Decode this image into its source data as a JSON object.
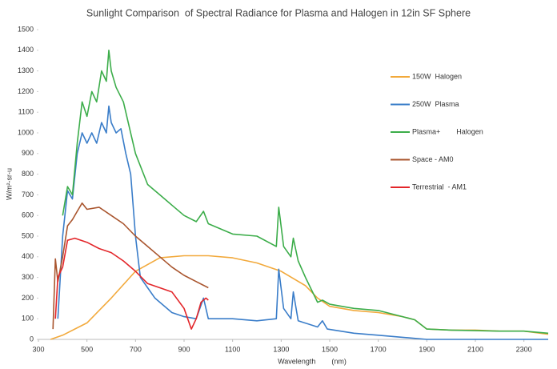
{
  "chart_data": {
    "type": "line",
    "title": "Sunlight Comparison  of Spectral Radiance for Plasma and Halogen in 12in SF Sphere",
    "xlabel": "Wavelength        (nm)",
    "ylabel": "W/m²-sr-u",
    "xlim": [
      300,
      2400
    ],
    "xticks": [
      300,
      500,
      700,
      900,
      1100,
      1300,
      1500,
      1700,
      1900,
      2100,
      2300
    ],
    "ylim": [
      0,
      1500
    ],
    "yticks": [
      0,
      100,
      200,
      300,
      400,
      500,
      600,
      700,
      800,
      900,
      1000,
      1100,
      1200,
      1300,
      1400,
      1500
    ],
    "grid": false,
    "series": [
      {
        "name": "150W  Halogen",
        "color": "#f2a93b",
        "x": [
          350,
          400,
          500,
          600,
          700,
          800,
          900,
          1000,
          1100,
          1200,
          1300,
          1400,
          1450,
          1500,
          1600,
          1700,
          1800,
          1850,
          1900,
          2000,
          2100,
          2200,
          2300,
          2400
        ],
        "values": [
          0,
          20,
          80,
          200,
          330,
          395,
          405,
          405,
          395,
          370,
          330,
          260,
          200,
          160,
          140,
          130,
          110,
          95,
          50,
          45,
          45,
          40,
          40,
          25
        ]
      },
      {
        "name": "250W  Plasma",
        "color": "#3a7dc9",
        "x": [
          380,
          400,
          420,
          440,
          460,
          480,
          500,
          520,
          540,
          560,
          580,
          590,
          600,
          620,
          640,
          660,
          680,
          700,
          720,
          750,
          780,
          800,
          850,
          900,
          950,
          980,
          1000,
          1100,
          1200,
          1280,
          1290,
          1310,
          1340,
          1350,
          1370,
          1450,
          1470,
          1490,
          1600,
          1700,
          1800,
          1900,
          2400
        ],
        "values": [
          100,
          500,
          720,
          680,
          900,
          1000,
          950,
          1000,
          950,
          1050,
          1000,
          1130,
          1050,
          1000,
          1020,
          900,
          800,
          500,
          300,
          250,
          200,
          180,
          130,
          110,
          100,
          200,
          100,
          100,
          90,
          100,
          340,
          150,
          100,
          230,
          90,
          60,
          90,
          50,
          30,
          20,
          10,
          0,
          0
        ]
      },
      {
        "name": "Plasma+        Halogen",
        "color": "#3cad4a",
        "x": [
          400,
          420,
          440,
          460,
          480,
          500,
          520,
          540,
          560,
          580,
          590,
          600,
          620,
          650,
          700,
          750,
          800,
          850,
          900,
          950,
          980,
          1000,
          1100,
          1200,
          1280,
          1290,
          1310,
          1340,
          1350,
          1370,
          1400,
          1450,
          1470,
          1500,
          1600,
          1700,
          1800,
          1850,
          1900,
          2000,
          2200,
          2300,
          2400
        ],
        "values": [
          600,
          740,
          700,
          950,
          1150,
          1080,
          1200,
          1150,
          1300,
          1250,
          1400,
          1300,
          1220,
          1150,
          900,
          750,
          700,
          650,
          600,
          570,
          620,
          560,
          510,
          500,
          450,
          640,
          450,
          400,
          490,
          380,
          300,
          180,
          190,
          170,
          150,
          140,
          110,
          95,
          50,
          45,
          40,
          40,
          30
        ]
      },
      {
        "name": "Space - AM0",
        "color": "#a9552e",
        "x": [
          360,
          370,
          380,
          400,
          420,
          440,
          460,
          480,
          500,
          550,
          600,
          650,
          700,
          750,
          800,
          850,
          900,
          950,
          1000
        ],
        "values": [
          50,
          390,
          280,
          400,
          550,
          580,
          620,
          660,
          630,
          640,
          600,
          560,
          500,
          450,
          400,
          350,
          310,
          280,
          250
        ]
      },
      {
        "name": "Terrestrial  - AM1",
        "color": "#e3262a",
        "x": [
          370,
          380,
          400,
          420,
          450,
          500,
          550,
          600,
          650,
          700,
          750,
          800,
          850,
          900,
          930,
          950,
          970,
          990,
          1000
        ],
        "values": [
          100,
          300,
          350,
          480,
          490,
          470,
          440,
          420,
          380,
          330,
          270,
          250,
          230,
          150,
          50,
          100,
          180,
          200,
          190
        ]
      }
    ]
  }
}
